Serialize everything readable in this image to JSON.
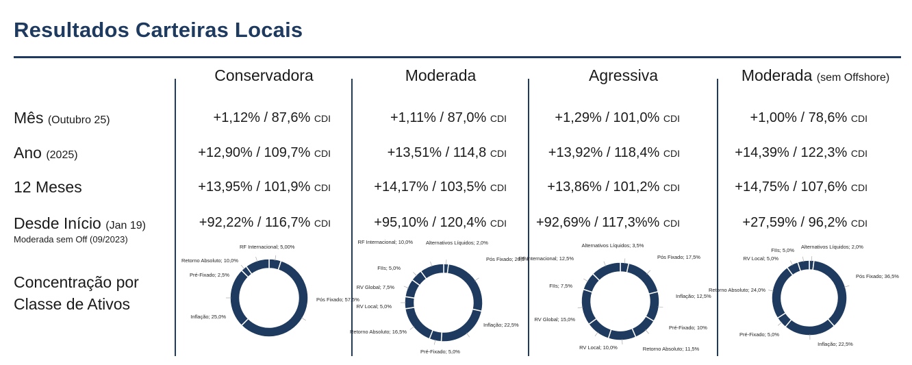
{
  "page_title": "Resultados Carteiras Locais",
  "columns": [
    {
      "name": "Conservadora",
      "suffix": ""
    },
    {
      "name": "Moderada",
      "suffix": ""
    },
    {
      "name": "Agressiva",
      "suffix": ""
    },
    {
      "name": "Moderada",
      "suffix": "(sem Offshore)"
    }
  ],
  "rows": [
    {
      "label": "Mês",
      "sub": "(Outubro 25)",
      "values": [
        "+1,12% / 87,6%",
        "+1,11% / 87,0%",
        "+1,29% / 101,0%",
        "+1,00% / 78,6%"
      ]
    },
    {
      "label": "Ano",
      "sub": "(2025)",
      "values": [
        "+12,90% / 109,7%",
        "+13,51% / 114,8",
        "+13,92% / 118,4%",
        "+14,39% / 122,3%"
      ]
    },
    {
      "label": "12 Meses",
      "sub": "",
      "values": [
        "+13,95% / 101,9%",
        "+14,17% / 103,5%",
        "+13,86% / 101,2%",
        "+14,75% / 107,6%"
      ]
    },
    {
      "label": "Desde Início",
      "sub": "(Jan 19)",
      "values": [
        "+92,22% / 116,7%",
        "+95,10% / 120,4%",
        "+92,69% / 117,3%%",
        "+27,59% / 96,2%"
      ]
    }
  ],
  "cdi_label": "CDI",
  "footnote": "Moderada sem Off (09/2023)",
  "concentration_label": [
    "Concentração por",
    "Classe de Ativos"
  ],
  "colors": {
    "primary": "#1e3a5f",
    "donut": "#1e3a5f"
  },
  "chart_data": [
    {
      "type": "pie",
      "title": "Conservadora",
      "slices": [
        {
          "label": "RF Internacional; 5,00%",
          "value": 5.0
        },
        {
          "label": "Pós Fixado; 57,5%",
          "value": 57.5
        },
        {
          "label": "Inflação; 25,0%",
          "value": 25.0
        },
        {
          "label": "Pré-Fixado; 2,5%",
          "value": 2.5
        },
        {
          "label": "Retorno Absoluto; 10,0%",
          "value": 10.0
        }
      ]
    },
    {
      "type": "pie",
      "title": "Moderada",
      "slices": [
        {
          "label": "Alternativos Líquidos; 2,0%",
          "value": 2.0
        },
        {
          "label": "Pós Fixado; 26,5%",
          "value": 26.5
        },
        {
          "label": "Inflação; 22,5%",
          "value": 22.5
        },
        {
          "label": "Pré-Fixado; 5,0%",
          "value": 5.0
        },
        {
          "label": "Retorno Absoluto; 16,5%",
          "value": 16.5
        },
        {
          "label": "RV Local; 5,0%",
          "value": 5.0
        },
        {
          "label": "RV Global; 7,5%",
          "value": 7.5
        },
        {
          "label": "FIIs; 5,0%",
          "value": 5.0
        },
        {
          "label": "RF Internacional; 10,0%",
          "value": 10.0
        }
      ]
    },
    {
      "type": "pie",
      "title": "Agressiva",
      "slices": [
        {
          "label": "Alternativos Líquidos; 3,5%",
          "value": 3.5
        },
        {
          "label": "Pós Fixado; 17,5%",
          "value": 17.5
        },
        {
          "label": "Inflação; 12,5%",
          "value": 12.5
        },
        {
          "label": "Pré-Fixado; 10%",
          "value": 10.0
        },
        {
          "label": "Retorno Absoluto; 11,5%",
          "value": 11.5
        },
        {
          "label": "RV Local; 10,0%",
          "value": 10.0
        },
        {
          "label": "RV Global; 15,0%",
          "value": 15.0
        },
        {
          "label": "FIIs; 7,5%",
          "value": 7.5
        },
        {
          "label": "RF Internacional; 12,5%",
          "value": 12.5
        }
      ]
    },
    {
      "type": "pie",
      "title": "Moderada (sem Offshore)",
      "slices": [
        {
          "label": "Alternativos Líquidos; 2,0%",
          "value": 2.0
        },
        {
          "label": "Pós Fixado; 36,5%",
          "value": 36.5
        },
        {
          "label": "Inflação; 22,5%",
          "value": 22.5
        },
        {
          "label": "Pré-Fixado; 5,0%",
          "value": 5.0
        },
        {
          "label": "Retorno Absoluto; 24,0%",
          "value": 24.0
        },
        {
          "label": "RV Local; 5,0%",
          "value": 5.0
        },
        {
          "label": "FIIs; 5,0%",
          "value": 5.0
        }
      ]
    }
  ]
}
